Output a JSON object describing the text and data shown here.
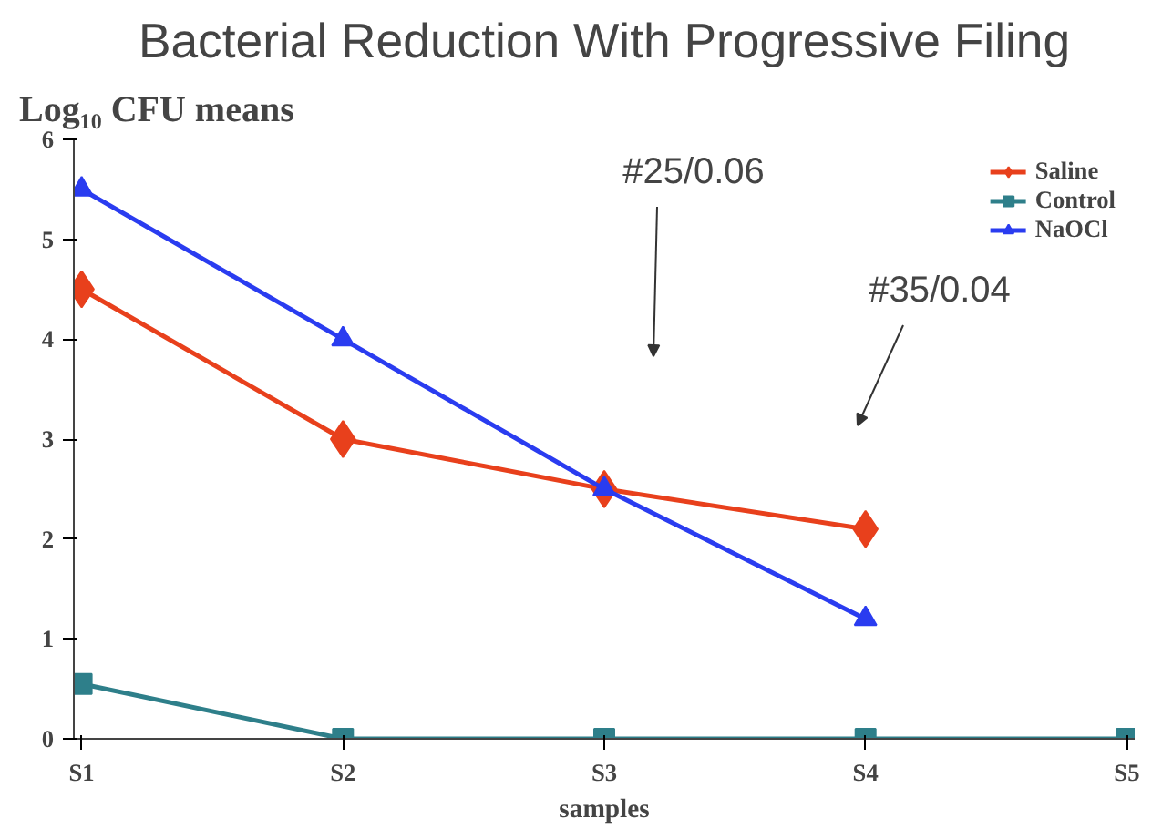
{
  "chart_data": {
    "type": "line",
    "title": "Bacterial Reduction With Progressive Filing",
    "ylabel": "Log₁₀ CFU means",
    "xlabel": "samples",
    "categories": [
      "S1",
      "S2",
      "S3",
      "S4",
      "S5"
    ],
    "series": [
      {
        "name": "Saline",
        "color": "#e8401c",
        "marker": "diamond",
        "values": [
          4.5,
          3.0,
          2.5,
          2.1,
          null
        ]
      },
      {
        "name": "Control",
        "color": "#2e7f8a",
        "marker": "square",
        "values": [
          0.55,
          0,
          0,
          0,
          0
        ]
      },
      {
        "name": "NaOCl",
        "color": "#2a3cf0",
        "marker": "triangle",
        "values": [
          5.5,
          4.0,
          2.5,
          1.2,
          null
        ]
      }
    ],
    "ylim": [
      0,
      6
    ],
    "yticks": [
      0,
      1,
      2,
      3,
      4,
      5,
      6
    ],
    "grid": false,
    "legend": "top right",
    "annotations": [
      "#25/0.06",
      "#35/0.04"
    ]
  }
}
